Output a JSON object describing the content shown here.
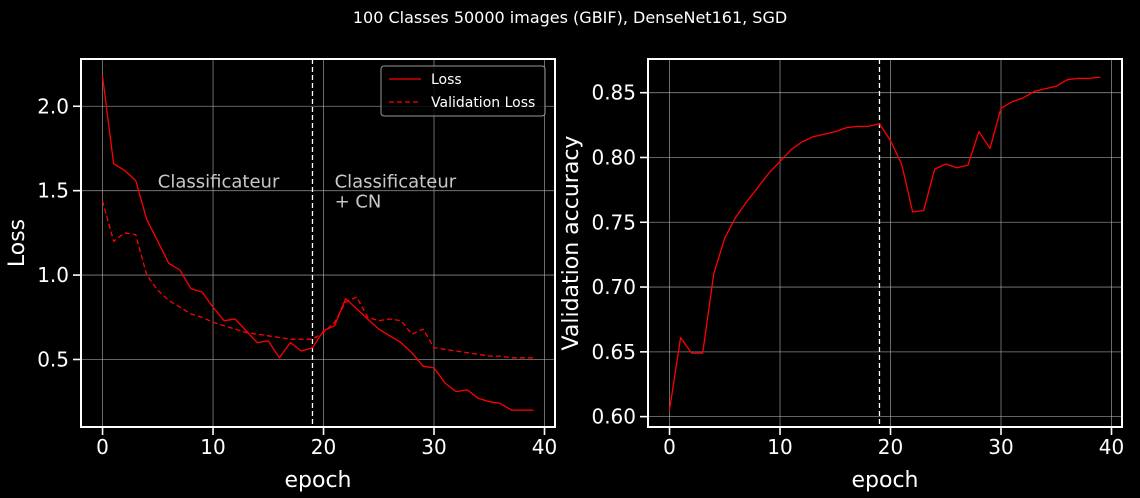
{
  "figure": {
    "title": "100 Classes 50000 images (GBIF), DenseNet161, SGD",
    "background": "#000000",
    "line_color": "#ff0000",
    "grid_color": "#b0b0b0",
    "phase_line_x": 19
  },
  "chart_data": [
    {
      "type": "line",
      "xlabel": "epoch",
      "ylabel": "Loss",
      "xlim": [
        -1.95,
        40.95
      ],
      "ylim": [
        0.1,
        2.28
      ],
      "xticks": [
        0,
        10,
        20,
        30,
        40
      ],
      "yticks": [
        0.5,
        1.0,
        1.5,
        2.0
      ],
      "ytick_labels": [
        "0.5",
        "1.0",
        "1.5",
        "2.0"
      ],
      "grid": true,
      "legend": "top-right",
      "annotations": [
        {
          "text": "Classificateur",
          "x": 5,
          "y": 1.52
        },
        {
          "text": "Classificateur",
          "x": 21,
          "y": 1.52
        },
        {
          "text": "+ CN",
          "x": 21,
          "y": 1.4
        }
      ],
      "x": [
        0,
        1,
        2,
        3,
        4,
        5,
        6,
        7,
        8,
        9,
        10,
        11,
        12,
        13,
        14,
        15,
        16,
        17,
        18,
        19,
        20,
        21,
        22,
        23,
        24,
        25,
        26,
        27,
        28,
        29,
        30,
        31,
        32,
        33,
        34,
        35,
        36,
        37,
        38,
        39
      ],
      "series": [
        {
          "name": "Loss",
          "style": "solid",
          "values": [
            2.18,
            1.66,
            1.62,
            1.56,
            1.33,
            1.2,
            1.07,
            1.03,
            0.92,
            0.9,
            0.81,
            0.73,
            0.74,
            0.67,
            0.6,
            0.61,
            0.51,
            0.6,
            0.55,
            0.57,
            0.67,
            0.7,
            0.86,
            0.8,
            0.74,
            0.68,
            0.64,
            0.6,
            0.54,
            0.46,
            0.45,
            0.36,
            0.31,
            0.32,
            0.27,
            0.25,
            0.24,
            0.2,
            0.2,
            0.2
          ]
        },
        {
          "name": "Validation Loss",
          "style": "dashed",
          "values": [
            1.44,
            1.2,
            1.25,
            1.24,
            1.0,
            0.91,
            0.85,
            0.81,
            0.77,
            0.75,
            0.72,
            0.7,
            0.68,
            0.66,
            0.65,
            0.64,
            0.63,
            0.62,
            0.62,
            0.62,
            0.66,
            0.72,
            0.84,
            0.87,
            0.75,
            0.73,
            0.74,
            0.73,
            0.65,
            0.68,
            0.57,
            0.56,
            0.55,
            0.54,
            0.53,
            0.52,
            0.52,
            0.51,
            0.51,
            0.51
          ]
        }
      ]
    },
    {
      "type": "line",
      "xlabel": "epoch",
      "ylabel": "Validation accuracy",
      "xlim": [
        -1.95,
        40.95
      ],
      "ylim": [
        0.592,
        0.876
      ],
      "xticks": [
        0,
        10,
        20,
        30,
        40
      ],
      "yticks": [
        0.6,
        0.65,
        0.7,
        0.75,
        0.8,
        0.85
      ],
      "ytick_labels": [
        "0.60",
        "0.65",
        "0.70",
        "0.75",
        "0.80",
        "0.85"
      ],
      "grid": true,
      "x": [
        0,
        1,
        2,
        3,
        4,
        5,
        6,
        7,
        8,
        9,
        10,
        11,
        12,
        13,
        14,
        15,
        16,
        17,
        18,
        19,
        20,
        21,
        22,
        23,
        24,
        25,
        26,
        27,
        28,
        29,
        30,
        31,
        32,
        33,
        34,
        35,
        36,
        37,
        38,
        39
      ],
      "series": [
        {
          "style": "solid",
          "values": [
            0.605,
            0.661,
            0.649,
            0.649,
            0.71,
            0.738,
            0.754,
            0.766,
            0.777,
            0.788,
            0.797,
            0.806,
            0.812,
            0.816,
            0.818,
            0.82,
            0.823,
            0.824,
            0.824,
            0.826,
            0.813,
            0.795,
            0.758,
            0.759,
            0.791,
            0.795,
            0.792,
            0.794,
            0.82,
            0.807,
            0.838,
            0.843,
            0.846,
            0.851,
            0.853,
            0.855,
            0.86,
            0.861,
            0.861,
            0.862
          ]
        }
      ]
    }
  ]
}
